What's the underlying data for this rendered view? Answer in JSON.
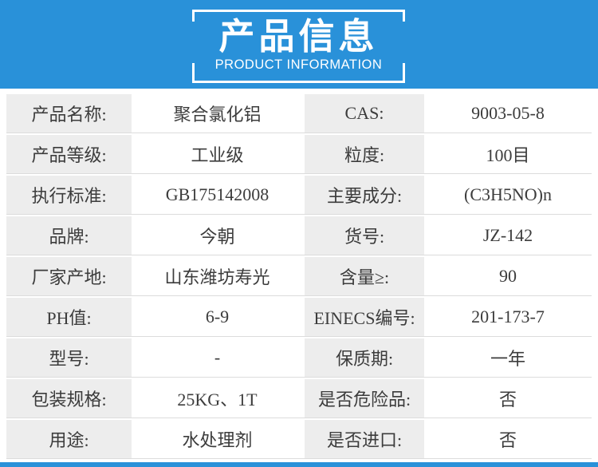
{
  "colors": {
    "accent_blue": "#2991D9",
    "label_cell_bg": "#EDEDED",
    "row_divider": "#DCDCDC",
    "text_dark": "#3C3C3C"
  },
  "header": {
    "title": "产品信息",
    "subtitle": "PRODUCT INFORMATION"
  },
  "table": {
    "rows": [
      {
        "label1": "产品名称:",
        "value1": "聚合氯化铝",
        "label2": "CAS:",
        "value2": "9003-05-8"
      },
      {
        "label1": "产品等级:",
        "value1": "工业级",
        "label2": "粒度:",
        "value2": "100目"
      },
      {
        "label1": "执行标准:",
        "value1": "GB175142008",
        "label2": "主要成分:",
        "value2": "(C3H5NO)n"
      },
      {
        "label1": "品牌:",
        "value1": "今朝",
        "label2": "货号:",
        "value2": "JZ-142"
      },
      {
        "label1": "厂家产地:",
        "value1": "山东潍坊寿光",
        "label2": "含量≥:",
        "value2": "90"
      },
      {
        "label1": "PH值:",
        "value1": "6-9",
        "label2": "EINECS编号:",
        "value2": "201-173-7"
      },
      {
        "label1": "型号:",
        "value1": "-",
        "label2": "保质期:",
        "value2": "一年"
      },
      {
        "label1": "包装规格:",
        "value1": "25KG、1T",
        "label2": "是否危险品:",
        "value2": "否"
      },
      {
        "label1": "用途:",
        "value1": "水处理剂",
        "label2": "是否进口:",
        "value2": "否"
      }
    ]
  }
}
